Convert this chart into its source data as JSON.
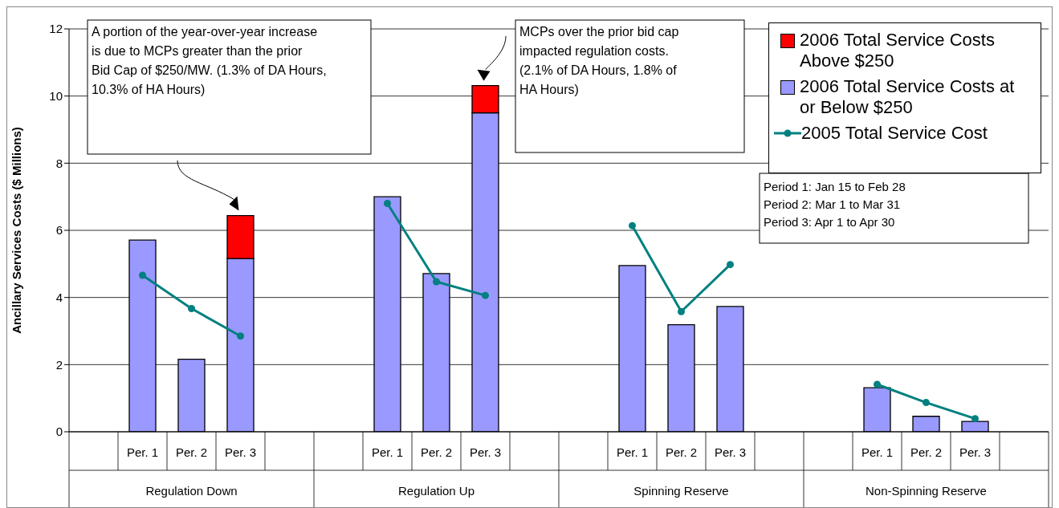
{
  "chart_data": {
    "type": "bar",
    "stacked": true,
    "ylabel": "Ancillary Services Costs ($ Millions)",
    "categories": [
      null,
      "Per. 1",
      "Per. 2",
      "Per. 3",
      null,
      null,
      "Per. 1",
      "Per. 2",
      "Per. 3",
      null,
      null,
      "Per. 1",
      "Per. 2",
      "Per. 3",
      null,
      null,
      "Per. 1",
      "Per. 2",
      "Per. 3",
      null
    ],
    "series": [
      {
        "name": "2006 Total Service Costs at or Below $250",
        "color": "#9999ff",
        "values": [
          null,
          5.71,
          2.16,
          5.16,
          null,
          null,
          7.0,
          4.71,
          9.5,
          null,
          null,
          4.95,
          3.19,
          3.73,
          null,
          null,
          1.31,
          0.46,
          0.31,
          null
        ]
      },
      {
        "name": "2006 Total Service Costs Above $250",
        "color": "#ff0000",
        "values": [
          null,
          null,
          null,
          1.28,
          null,
          null,
          null,
          null,
          0.81,
          null,
          null,
          null,
          null,
          null,
          null,
          null,
          null,
          null,
          null,
          null
        ]
      },
      {
        "name": "2005 Total Service Cost",
        "type": "line",
        "color": "#008080",
        "marker": "circle",
        "values": [
          null,
          4.66,
          3.67,
          2.85,
          null,
          null,
          6.8,
          4.47,
          4.06,
          null,
          null,
          6.14,
          3.58,
          4.98,
          null,
          null,
          1.41,
          0.87,
          0.39,
          null
        ]
      }
    ],
    "ylim": [
      0,
      12
    ],
    "yticks": [
      0,
      2,
      4,
      6,
      8,
      10,
      12
    ],
    "grid": "y",
    "legend": "top right",
    "annotations": [
      "A portion of the year-over-year increase is due to MCPs greater than the prior Bid Cap of $250/MW. (1.3% of DA Hours, 10.3% of HA Hours)",
      "MCPs over the prior bid cap impacted regulation costs. (2.1% of DA Hours, 1.8% of HA Hours)",
      "Period 1: Jan 15 to Feb 28",
      "Period 2: Mar 1 to Mar 31",
      "Period 3: Apr 1 to Apr 30",
      "Regulation Down",
      "Regulation Up",
      "Spinning Reserve",
      "Non-Spinning Reserve"
    ]
  }
}
